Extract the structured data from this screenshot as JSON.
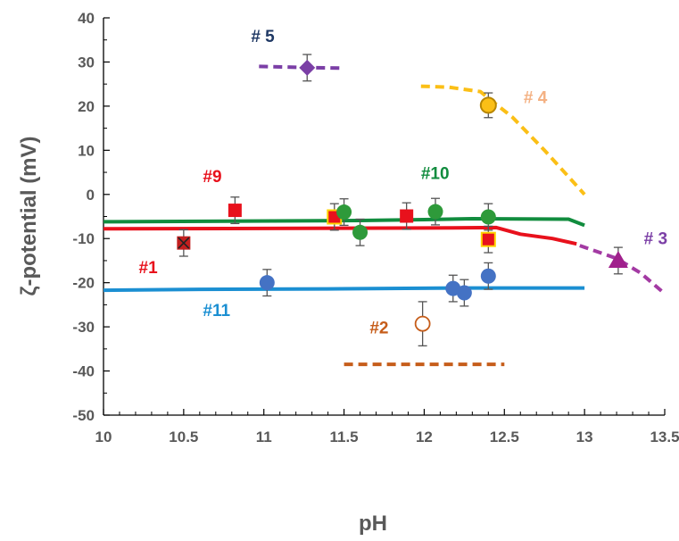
{
  "chart_data": {
    "type": "scatter",
    "xlabel": "pH",
    "ylabel": "ζ-potential (mV)",
    "xlim": [
      10,
      13.5
    ],
    "ylim": [
      -50,
      40
    ],
    "xticks": [
      10,
      10.5,
      11,
      11.5,
      12,
      12.5,
      13,
      13.5
    ],
    "xtick_labels": [
      "10",
      "10.5",
      "11",
      "11.5",
      "12",
      "12.5",
      "13",
      "13.5"
    ],
    "yticks": [
      40,
      30,
      20,
      10,
      0,
      -10,
      -20,
      -30,
      -40,
      -50
    ],
    "ytick_labels": [
      "40",
      "30",
      "20",
      "10",
      "0",
      "-10",
      "-20",
      "-30",
      "-40",
      "-50"
    ],
    "grid": false,
    "curves": [
      {
        "name": "#10",
        "color": "#118c3e",
        "dash": "solid",
        "x": [
          10,
          11.2,
          11.6,
          12.0,
          12.3,
          12.9,
          13.0
        ],
        "y": [
          -6.2,
          -6.0,
          -5.9,
          -5.7,
          -5.5,
          -5.6,
          -7.0
        ]
      },
      {
        "name": "#1",
        "color": "#e8111c",
        "dash": "solid",
        "x": [
          10,
          11.0,
          12.0,
          12.45,
          12.6,
          12.8,
          12.95
        ],
        "y": [
          -7.8,
          -7.7,
          -7.6,
          -7.5,
          -9.0,
          -10.0,
          -11.2
        ]
      },
      {
        "name": "#11",
        "color": "#1b8fd2",
        "dash": "solid",
        "x": [
          10,
          10.6,
          11.4,
          12.2,
          13.0
        ],
        "y": [
          -21.7,
          -21.5,
          -21.4,
          -21.2,
          -21.2
        ]
      },
      {
        "name": "# 4",
        "color": "#fbbf16",
        "dash": "dashed",
        "x": [
          11.98,
          12.15,
          12.35,
          12.55,
          12.75,
          12.9,
          13.0
        ],
        "y": [
          24.5,
          24.3,
          23.3,
          17.5,
          10.0,
          4.0,
          0.0
        ]
      },
      {
        "name": "# 3",
        "color": "#a33aa3",
        "dash": "dashed",
        "x": [
          12.97,
          13.2,
          13.35,
          13.5
        ],
        "y": [
          -11.6,
          -14.5,
          -17.8,
          -22.5
        ]
      },
      {
        "name": "# 5",
        "color": "#7b3fa6",
        "dash": "dashed",
        "x": [
          10.97,
          11.2,
          11.5
        ],
        "y": [
          29,
          28.8,
          28.6
        ]
      },
      {
        "name": "#2",
        "color": "#c65d1a",
        "dash": "dashed",
        "x": [
          11.5,
          12.15,
          12.5
        ],
        "y": [
          -38.5,
          -38.5,
          -38.5
        ]
      }
    ],
    "points": [
      {
        "name": "# 5",
        "marker": "diamond",
        "color": "#7b3fa6",
        "x": 11.27,
        "y": 28.7,
        "err": 3
      },
      {
        "name": "# 4",
        "marker": "circle",
        "color": "#fbbf16",
        "stroke": "#b88600",
        "x": 12.4,
        "y": 20.2,
        "err": 2.8
      },
      {
        "name": "#9",
        "marker": "square",
        "color": "#e8111c",
        "x": 10.82,
        "y": -3.6,
        "err": 3
      },
      {
        "name": "#9",
        "marker": "square",
        "color": "#e8111c",
        "stroke": "#ffd200",
        "x": 11.44,
        "y": -5.1,
        "err": 3
      },
      {
        "name": "#9",
        "marker": "square",
        "color": "#e8111c",
        "x": 11.89,
        "y": -4.9,
        "err": 3
      },
      {
        "name": "#9",
        "marker": "square",
        "color": "#e8111c",
        "stroke": "#ffd200",
        "x": 12.4,
        "y": -10.2,
        "err": 3
      },
      {
        "name": "#1",
        "marker": "square-x",
        "color": "#c21f1f",
        "x": 10.5,
        "y": -11.0,
        "err": 3
      },
      {
        "name": "#10",
        "marker": "circle",
        "color": "#2e9a3a",
        "x": 11.5,
        "y": -4.0,
        "err": 3
      },
      {
        "name": "#10",
        "marker": "circle",
        "color": "#2e9a3a",
        "x": 11.6,
        "y": -8.6,
        "err": 3
      },
      {
        "name": "#10",
        "marker": "circle",
        "color": "#2e9a3a",
        "x": 12.07,
        "y": -3.9,
        "err": 3
      },
      {
        "name": "#10",
        "marker": "circle",
        "color": "#2e9a3a",
        "x": 12.4,
        "y": -5.1,
        "err": 3
      },
      {
        "name": "#11",
        "marker": "circle",
        "color": "#4472c4",
        "x": 11.02,
        "y": -20.0,
        "err": 3
      },
      {
        "name": "#11",
        "marker": "circle",
        "color": "#4472c4",
        "x": 12.18,
        "y": -21.3,
        "err": 3
      },
      {
        "name": "#11",
        "marker": "circle",
        "color": "#4472c4",
        "x": 12.25,
        "y": -22.3,
        "err": 3
      },
      {
        "name": "#11",
        "marker": "circle",
        "color": "#4472c4",
        "x": 12.4,
        "y": -18.5,
        "err": 3
      },
      {
        "name": "#2",
        "marker": "open-circle",
        "color": "#c65d1a",
        "x": 11.99,
        "y": -29.3,
        "err": 5
      },
      {
        "name": "# 3",
        "marker": "triangle",
        "color": "#a0208c",
        "x": 13.21,
        "y": -15.0,
        "err": 3
      }
    ],
    "annotations": [
      {
        "text": "# 5",
        "color": "#1f3864",
        "x": 10.92,
        "y": 34.5
      },
      {
        "text": "# 4",
        "color": "#f4b183",
        "x": 12.62,
        "y": 20.7
      },
      {
        "text": "#9",
        "color": "#e8111c",
        "x": 10.62,
        "y": 2.8
      },
      {
        "text": "#10",
        "color": "#118c3e",
        "x": 11.98,
        "y": 3.5
      },
      {
        "text": "#1",
        "color": "#e8111c",
        "x": 10.22,
        "y": -17.8
      },
      {
        "text": "# 3",
        "color": "#7b3fa6",
        "x": 13.37,
        "y": -11.3
      },
      {
        "text": "#11",
        "color": "#1b8fd2",
        "x": 10.62,
        "y": -27.6
      },
      {
        "text": "#2",
        "color": "#c65d1a",
        "x": 11.66,
        "y": -31.5
      }
    ]
  }
}
